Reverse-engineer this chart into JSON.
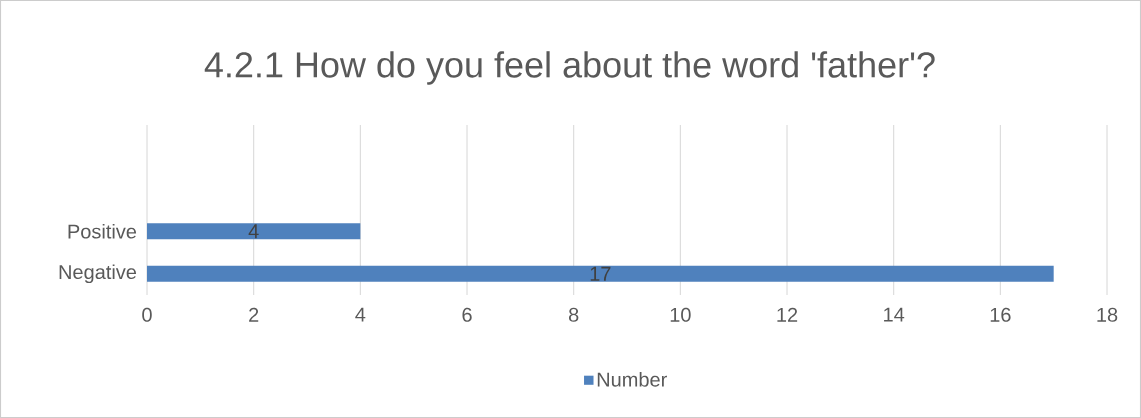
{
  "chart_data": {
    "type": "bar",
    "orientation": "horizontal",
    "title": "4.2.1 How do you feel about the word 'father'?",
    "categories": [
      null,
      null,
      "Positive",
      "Negative"
    ],
    "series": [
      {
        "name": "Number",
        "color": "#4f81bd",
        "values": [
          null,
          null,
          4,
          17
        ]
      }
    ],
    "xlim": [
      0,
      18
    ],
    "xticks": [
      0,
      2,
      4,
      6,
      8,
      10,
      12,
      14,
      16,
      18
    ],
    "grid": "x",
    "legend": "bottom",
    "data_labels": true
  }
}
